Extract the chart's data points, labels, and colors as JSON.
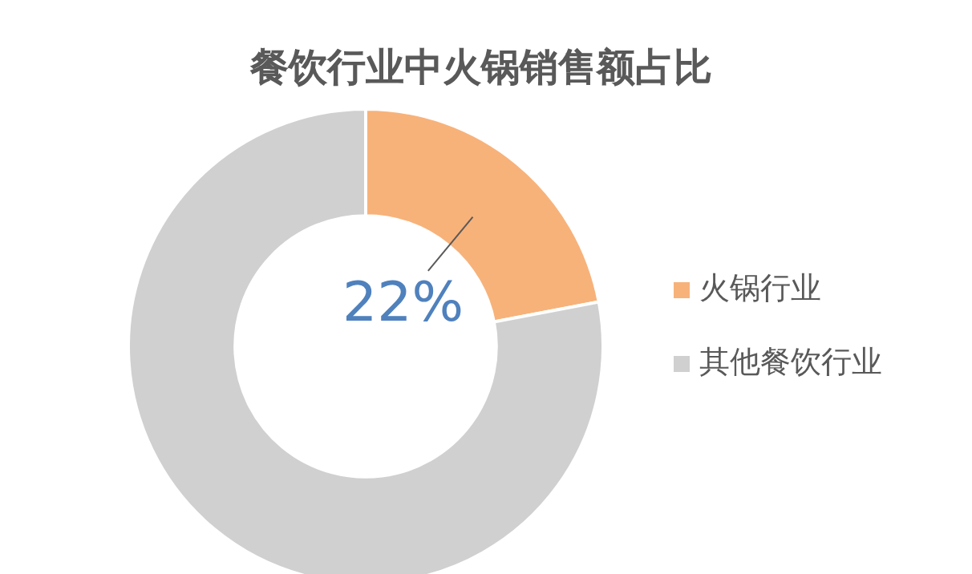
{
  "chart_data": {
    "type": "donut",
    "title": "餐饮行业中火锅销售额占比",
    "categories": [
      "火锅行业",
      "其他餐饮行业"
    ],
    "values": [
      22,
      78
    ],
    "colors": [
      "#f7b27a",
      "#d0d0d0"
    ],
    "value_labels": [
      "22%",
      null
    ],
    "legend": "right"
  }
}
